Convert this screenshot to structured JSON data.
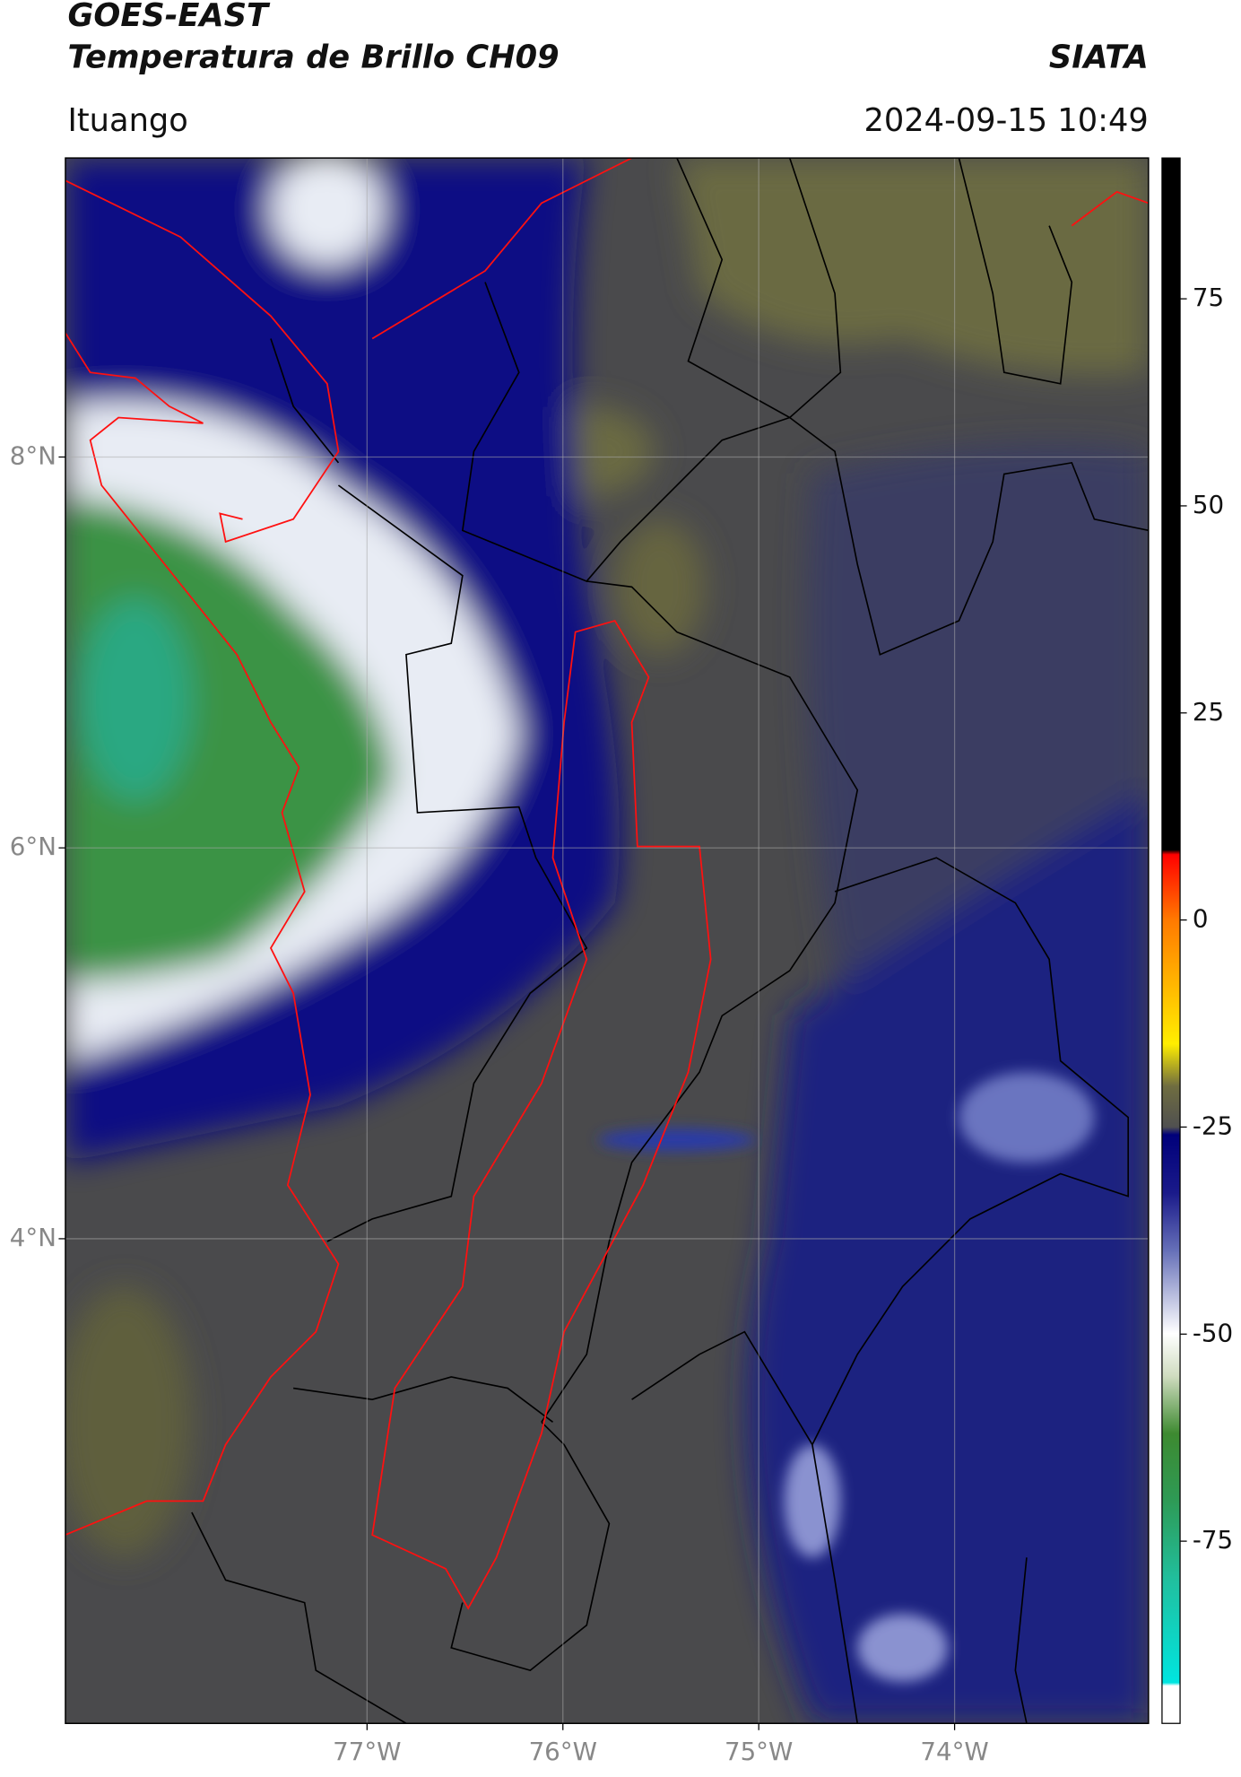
{
  "header": {
    "title": "GOES-EAST",
    "subtitle": "Temperatura de Brillo CH09",
    "source": "SIATA",
    "location": "Ituango",
    "timestamp": "2024-09-15 10:49"
  },
  "map": {
    "xlim": [
      -78.54,
      -73.01
    ],
    "ylim": [
      1.52,
      9.53
    ],
    "xticks": [
      {
        "value": -77,
        "label": "77°W"
      },
      {
        "value": -76,
        "label": "76°W"
      },
      {
        "value": -75,
        "label": "75°W"
      },
      {
        "value": -74,
        "label": "74°W"
      }
    ],
    "yticks": [
      {
        "value": 8,
        "label": "8°N"
      },
      {
        "value": 6,
        "label": "6°N"
      },
      {
        "value": 4,
        "label": "4°N"
      }
    ]
  },
  "colorbar": {
    "lim": [
      -97,
      92
    ],
    "ticks": [
      75,
      50,
      25,
      0,
      -25,
      -50,
      -75
    ]
  }
}
